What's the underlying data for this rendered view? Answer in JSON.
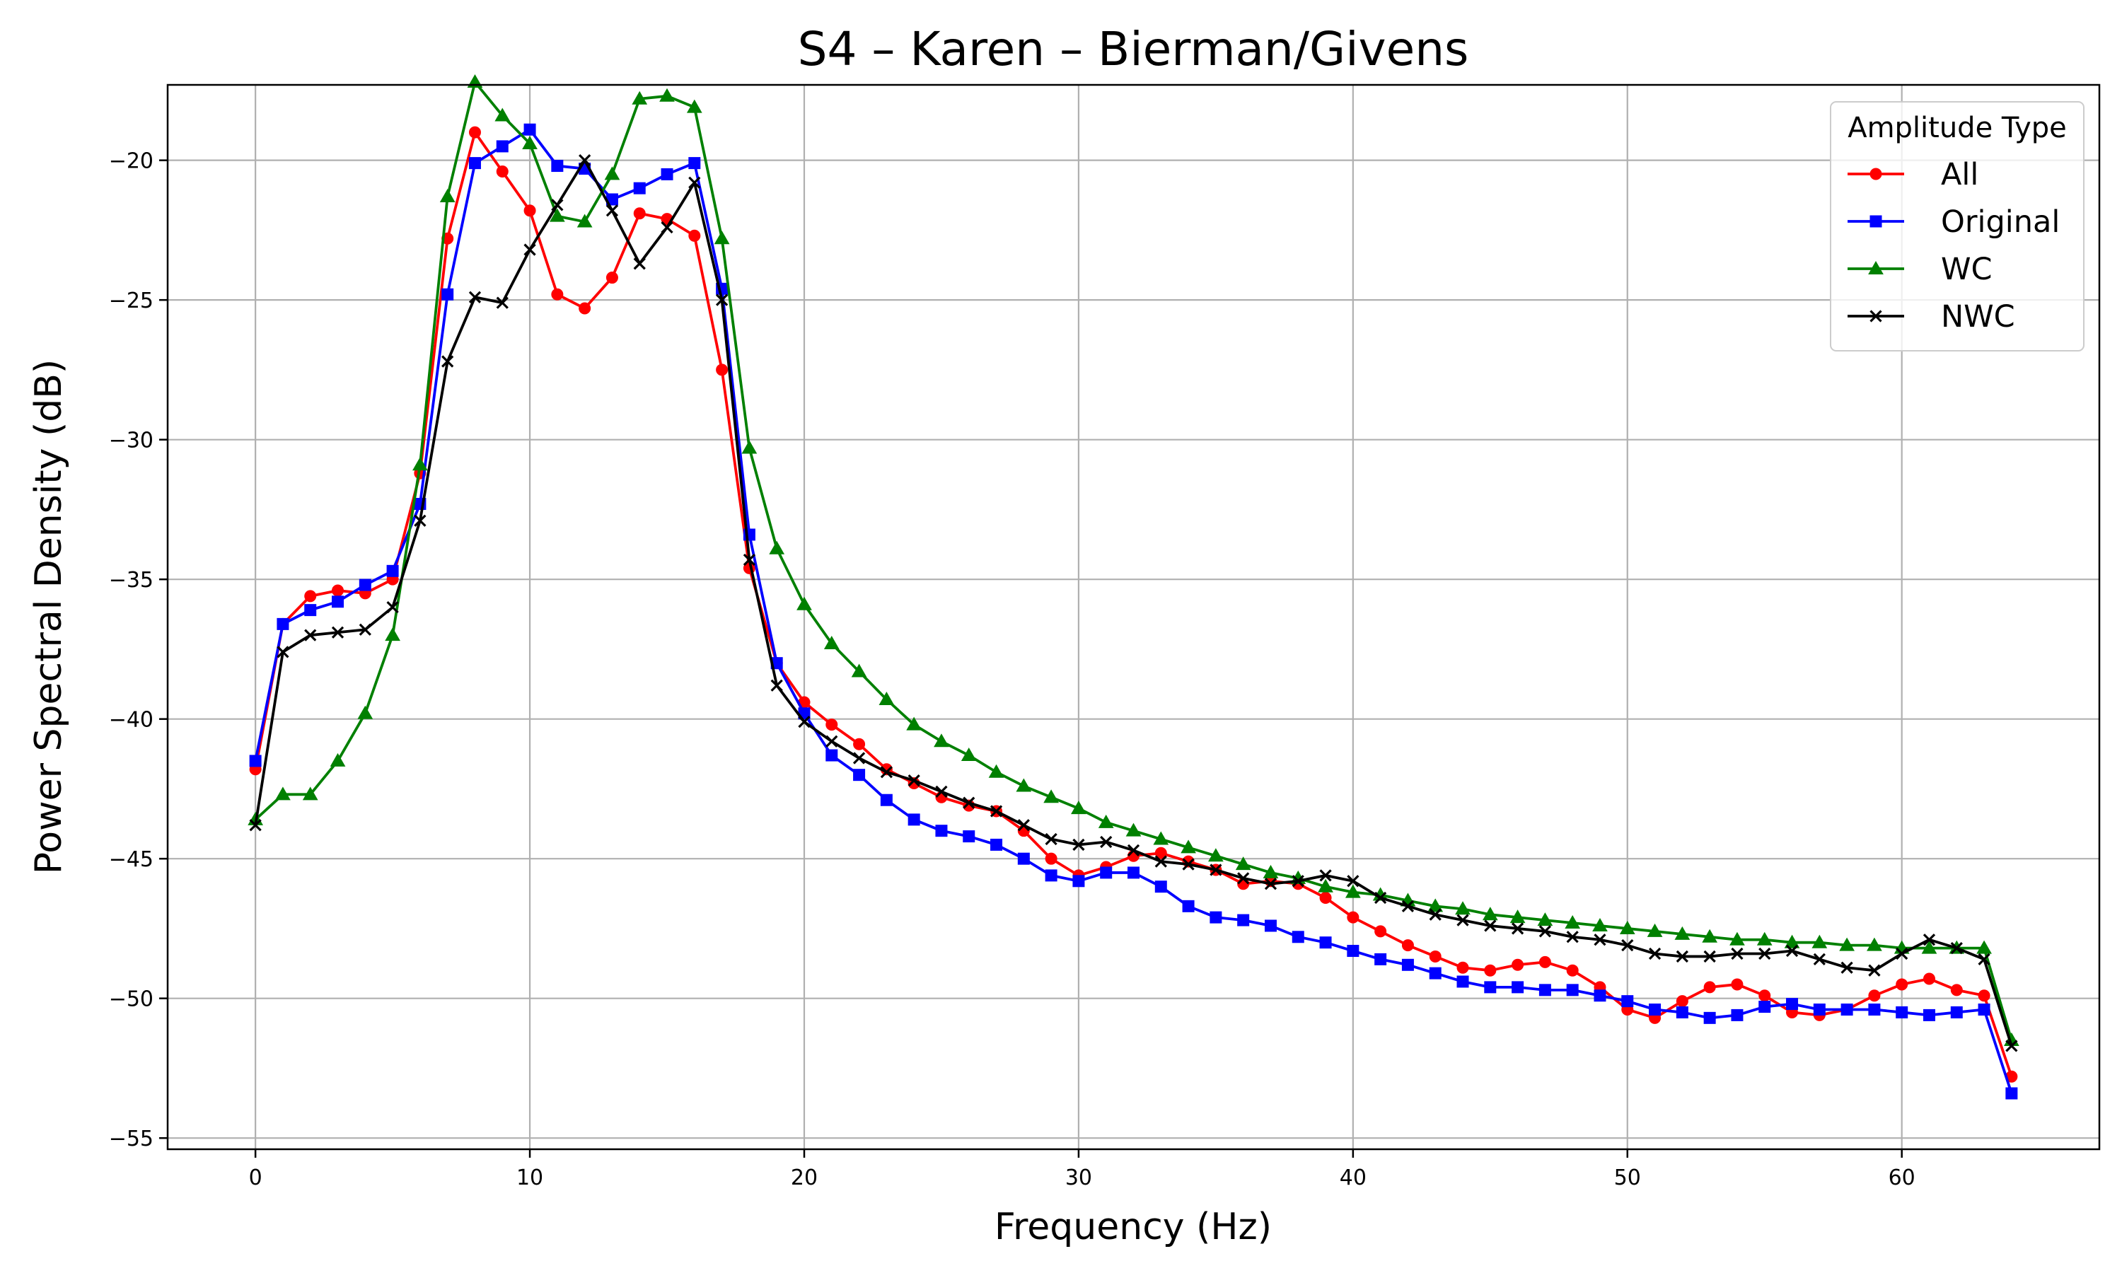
{
  "chart_data": {
    "type": "line",
    "title": "S4 – Karen – Bierman/Givens",
    "xlabel": "Frequency (Hz)",
    "ylabel": "Power Spectral Density (dB)",
    "xlim": [
      -3.2,
      67.2
    ],
    "ylim": [
      -55.4,
      -17.3
    ],
    "xticks": [
      0,
      10,
      20,
      30,
      40,
      50,
      60
    ],
    "yticks": [
      -55,
      -50,
      -45,
      -40,
      -35,
      -30,
      -25,
      -20
    ],
    "xtick_labels": [
      "0",
      "10",
      "20",
      "30",
      "40",
      "50",
      "60"
    ],
    "ytick_labels": [
      "−55",
      "−50",
      "−45",
      "−40",
      "−35",
      "−30",
      "−25",
      "−20"
    ],
    "grid": true,
    "legend": {
      "title": "Amplitude Type",
      "position": "top-right"
    },
    "x": [
      0,
      1,
      2,
      3,
      4,
      5,
      6,
      7,
      8,
      9,
      10,
      11,
      12,
      13,
      14,
      15,
      16,
      17,
      18,
      19,
      20,
      21,
      22,
      23,
      24,
      25,
      26,
      27,
      28,
      29,
      30,
      31,
      32,
      33,
      34,
      35,
      36,
      37,
      38,
      39,
      40,
      41,
      42,
      43,
      44,
      45,
      46,
      47,
      48,
      49,
      50,
      51,
      52,
      53,
      54,
      55,
      56,
      57,
      58,
      59,
      60,
      61,
      62,
      63,
      64
    ],
    "series": [
      {
        "name": "All",
        "color": "#ff0000",
        "marker": "circle",
        "values": [
          -41.8,
          -36.6,
          -35.6,
          -35.4,
          -35.5,
          -35.0,
          -31.2,
          -22.8,
          -19.0,
          -20.4,
          -21.8,
          -24.8,
          -25.3,
          -24.2,
          -21.9,
          -22.1,
          -22.7,
          -27.5,
          -34.6,
          -38.0,
          -39.4,
          -40.2,
          -40.9,
          -41.8,
          -42.3,
          -42.8,
          -43.1,
          -43.3,
          -44.0,
          -45.0,
          -45.6,
          -45.3,
          -44.9,
          -44.8,
          -45.1,
          -45.4,
          -45.9,
          -45.8,
          -45.9,
          -46.4,
          -47.1,
          -47.6,
          -48.1,
          -48.5,
          -48.9,
          -49.0,
          -48.8,
          -48.7,
          -49.0,
          -49.6,
          -50.4,
          -50.7,
          -50.1,
          -49.6,
          -49.5,
          -49.9,
          -50.5,
          -50.6,
          -50.4,
          -49.9,
          -49.5,
          -49.3,
          -49.7,
          -49.9,
          -52.8
        ]
      },
      {
        "name": "Original",
        "color": "#0000ff",
        "marker": "square",
        "values": [
          -41.5,
          -36.6,
          -36.1,
          -35.8,
          -35.2,
          -34.7,
          -32.3,
          -24.8,
          -20.1,
          -19.5,
          -18.9,
          -20.2,
          -20.3,
          -21.4,
          -21.0,
          -20.5,
          -20.1,
          -24.6,
          -33.4,
          -38.0,
          -39.8,
          -41.3,
          -42.0,
          -42.9,
          -43.6,
          -44.0,
          -44.2,
          -44.5,
          -45.0,
          -45.6,
          -45.8,
          -45.5,
          -45.5,
          -46.0,
          -46.7,
          -47.1,
          -47.2,
          -47.4,
          -47.8,
          -48.0,
          -48.3,
          -48.6,
          -48.8,
          -49.1,
          -49.4,
          -49.6,
          -49.6,
          -49.7,
          -49.7,
          -49.9,
          -50.1,
          -50.4,
          -50.5,
          -50.7,
          -50.6,
          -50.3,
          -50.2,
          -50.4,
          -50.4,
          -50.4,
          -50.5,
          -50.6,
          -50.5,
          -50.4,
          -53.4
        ]
      },
      {
        "name": "WC",
        "color": "#008000",
        "marker": "triangle",
        "values": [
          -43.6,
          -42.7,
          -42.7,
          -41.5,
          -39.8,
          -37.0,
          -30.9,
          -21.3,
          -17.2,
          -18.4,
          -19.4,
          -22.0,
          -22.2,
          -20.5,
          -17.8,
          -17.7,
          -18.1,
          -22.8,
          -30.3,
          -33.9,
          -35.9,
          -37.3,
          -38.3,
          -39.3,
          -40.2,
          -40.8,
          -41.3,
          -41.9,
          -42.4,
          -42.8,
          -43.2,
          -43.7,
          -44.0,
          -44.3,
          -44.6,
          -44.9,
          -45.2,
          -45.5,
          -45.7,
          -46.0,
          -46.2,
          -46.3,
          -46.5,
          -46.7,
          -46.8,
          -47.0,
          -47.1,
          -47.2,
          -47.3,
          -47.4,
          -47.5,
          -47.6,
          -47.7,
          -47.8,
          -47.9,
          -47.9,
          -48.0,
          -48.0,
          -48.1,
          -48.1,
          -48.2,
          -48.2,
          -48.2,
          -48.2,
          -51.5
        ]
      },
      {
        "name": "NWC",
        "color": "#000000",
        "marker": "x",
        "values": [
          -43.8,
          -37.6,
          -37.0,
          -36.9,
          -36.8,
          -36.0,
          -32.9,
          -27.2,
          -24.9,
          -25.1,
          -23.2,
          -21.6,
          -20.0,
          -21.8,
          -23.7,
          -22.4,
          -20.8,
          -25.0,
          -34.3,
          -38.8,
          -40.1,
          -40.8,
          -41.4,
          -41.9,
          -42.2,
          -42.6,
          -43.0,
          -43.3,
          -43.8,
          -44.3,
          -44.5,
          -44.4,
          -44.7,
          -45.1,
          -45.2,
          -45.4,
          -45.7,
          -45.9,
          -45.8,
          -45.6,
          -45.8,
          -46.4,
          -46.7,
          -47.0,
          -47.2,
          -47.4,
          -47.5,
          -47.6,
          -47.8,
          -47.9,
          -48.1,
          -48.4,
          -48.5,
          -48.5,
          -48.4,
          -48.4,
          -48.3,
          -48.6,
          -48.9,
          -49.0,
          -48.4,
          -47.9,
          -48.2,
          -48.6,
          -51.7
        ]
      }
    ]
  }
}
